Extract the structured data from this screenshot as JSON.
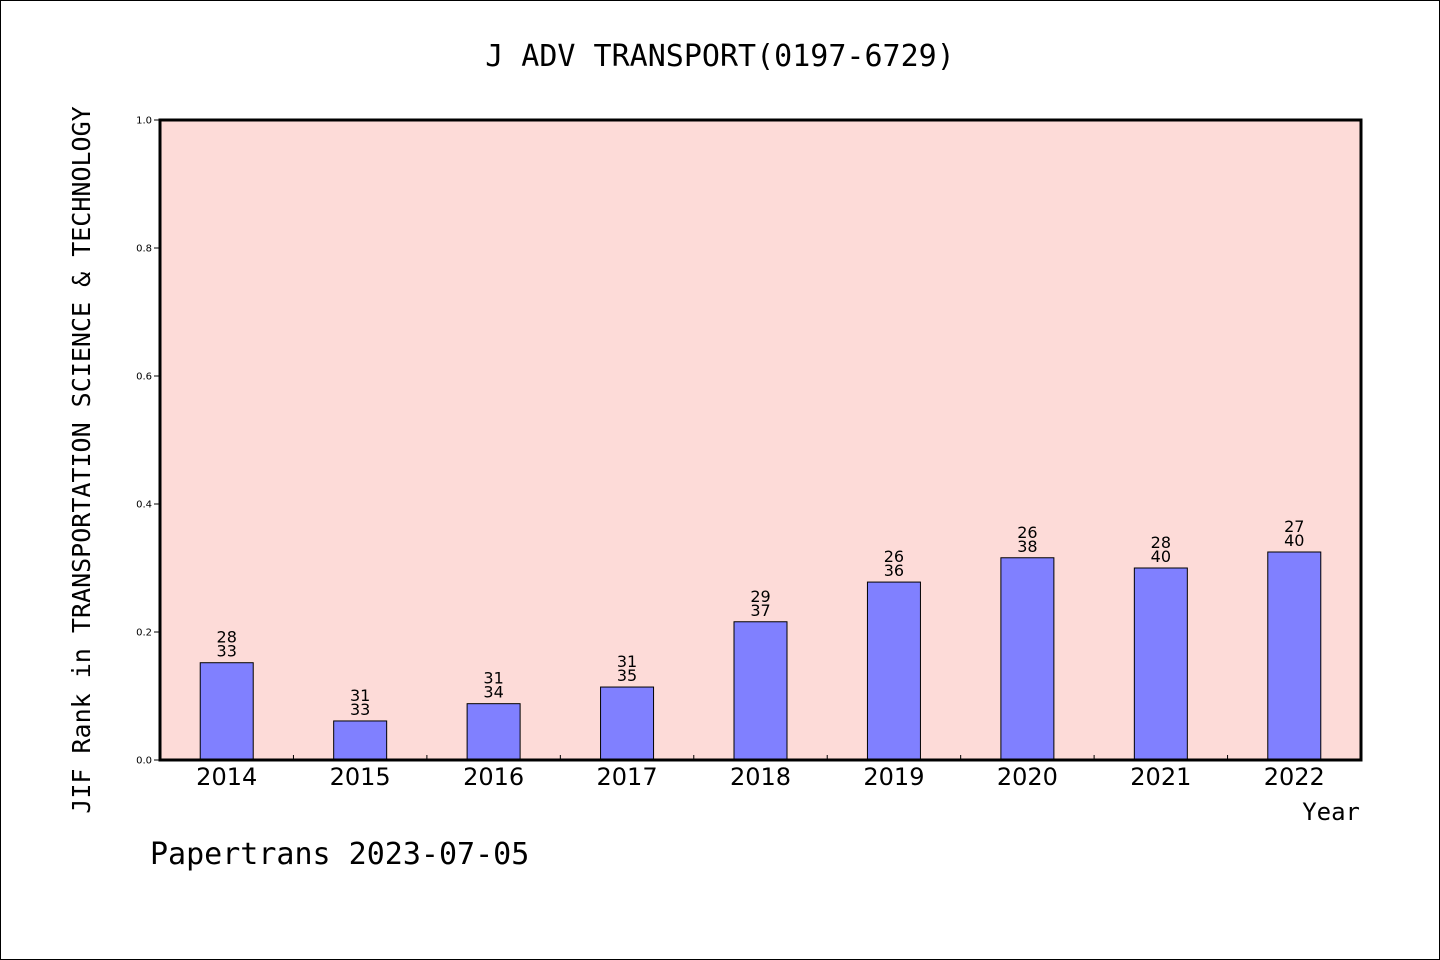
{
  "chart_data": {
    "type": "bar",
    "title": "J ADV TRANSPORT(0197-6729)",
    "ylabel": "JIF Rank in TRANSPORTATION SCIENCE & TECHNOLOGY",
    "xlabel": "Year",
    "ylim": [
      0,
      1.0
    ],
    "yticks": [
      "0.0",
      "0.2",
      "0.4",
      "0.6",
      "0.8",
      "1.0"
    ],
    "categories": [
      "2014",
      "2015",
      "2016",
      "2017",
      "2018",
      "2019",
      "2020",
      "2021",
      "2022"
    ],
    "values": [
      0.152,
      0.061,
      0.088,
      0.114,
      0.216,
      0.278,
      0.316,
      0.3,
      0.325
    ],
    "ranks": [
      "28",
      "31",
      "31",
      "31",
      "29",
      "26",
      "26",
      "28",
      "27"
    ],
    "totals": [
      "33",
      "33",
      "34",
      "35",
      "37",
      "36",
      "38",
      "40",
      "40"
    ],
    "grid": false,
    "legend": "none",
    "colors": {
      "plot_background": "#fddbd8",
      "bar_fill": "#8080ff",
      "bar_stroke": "#000000"
    }
  },
  "footer": {
    "text": "Papertrans 2023-07-05"
  }
}
